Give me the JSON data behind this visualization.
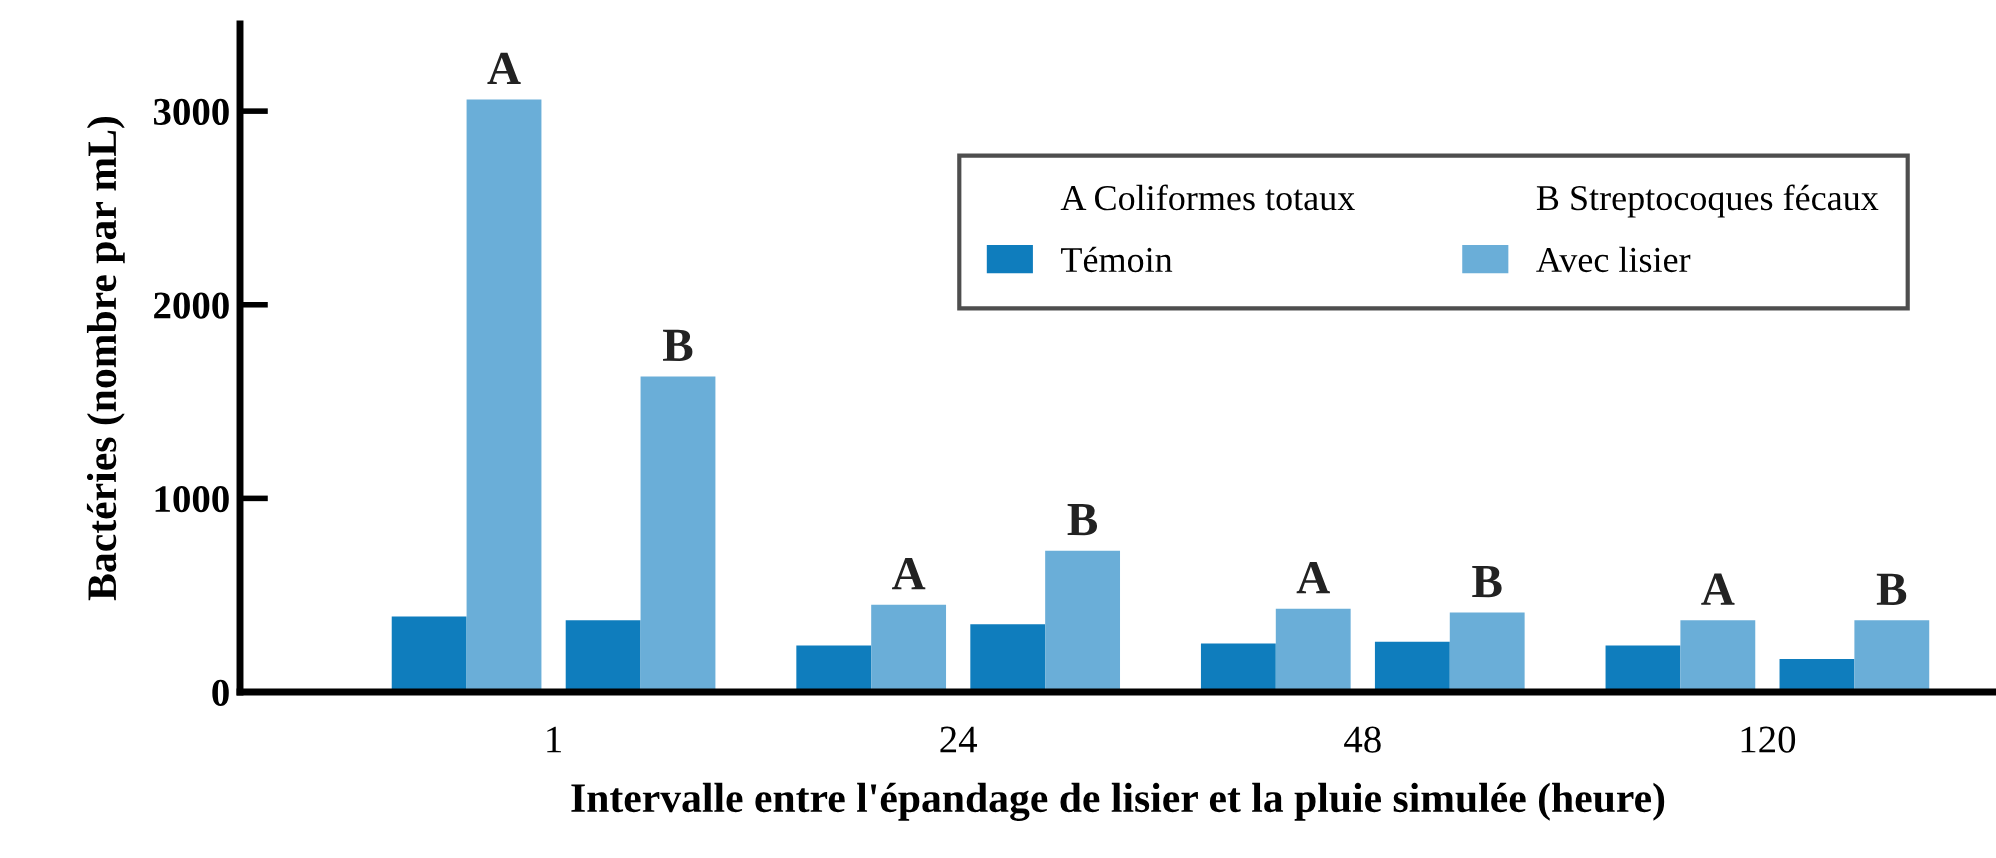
{
  "chart_data": {
    "type": "bar",
    "xlabel": "Intervalle entre l'épandage de lisier et la pluie simulée (heure)",
    "ylabel": "Bactéries (nombre par mL)",
    "categories": [
      "1",
      "24",
      "48",
      "120"
    ],
    "series": [
      {
        "name": "Témoin",
        "color": "#0f7dbd",
        "values": [
          390,
          240,
          250,
          240
        ]
      },
      {
        "name": "Avec lisier",
        "color": "#6aaed8",
        "values": [
          3060,
          450,
          430,
          370
        ],
        "value_labels": [
          "A",
          "A",
          "A",
          "A"
        ]
      },
      {
        "color": "#0f7dbd",
        "values": [
          370,
          350,
          260,
          170
        ]
      },
      {
        "color": "#6aaed8",
        "values": [
          1630,
          730,
          410,
          370
        ],
        "value_labels": [
          "B",
          "B",
          "B",
          "B"
        ]
      }
    ],
    "annotations": [
      "A Coliformes totaux",
      "B Streptocoques fécaux"
    ],
    "ylim": [
      0,
      3450
    ],
    "yticks": [
      0,
      1000,
      2000,
      3000
    ],
    "grid": false,
    "legend": "top right"
  }
}
